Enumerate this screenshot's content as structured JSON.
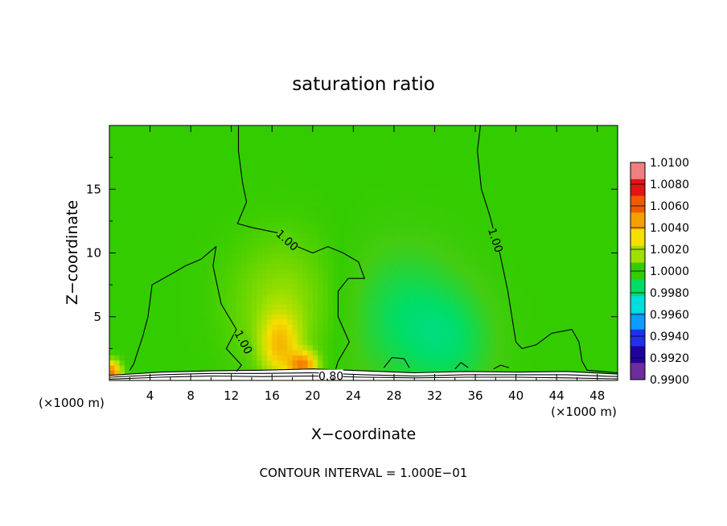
{
  "chart_data": {
    "type": "heatmap",
    "title": "saturation ratio",
    "xlabel": "X−coordinate",
    "ylabel": "Z−coordinate",
    "x_unit_left": "(×1000 m)",
    "x_unit_right": "(×1000 m)",
    "footer": "CONTOUR INTERVAL = 1.000E−01",
    "xlim": [
      0,
      50
    ],
    "ylim": [
      0,
      20
    ],
    "x_ticks": [
      4,
      8,
      12,
      16,
      20,
      24,
      28,
      32,
      36,
      40,
      44,
      48
    ],
    "y_ticks": [
      5,
      10,
      15
    ],
    "field_background": 1.0,
    "field_features": [
      {
        "x": 16.8,
        "z": 2.8,
        "sx": 1.2,
        "sz": 1.6,
        "amp": 0.0028
      },
      {
        "x": 19.0,
        "z": 1.2,
        "sx": 0.9,
        "sz": 0.7,
        "amp": 0.0045
      },
      {
        "x": 17.0,
        "z": 6.0,
        "sx": 3.5,
        "sz": 3.5,
        "amp": 0.0009
      },
      {
        "x": 29.0,
        "z": 5.0,
        "sx": 4.0,
        "sz": 4.0,
        "amp": -0.0009
      },
      {
        "x": 34.0,
        "z": 3.0,
        "sx": 3.0,
        "sz": 3.0,
        "amp": -0.0007
      },
      {
        "x": 0.2,
        "z": 0.6,
        "sx": 0.6,
        "sz": 0.6,
        "amp": 0.005
      }
    ],
    "colorbar": {
      "labels": [
        "1.0100",
        "1.0080",
        "1.0060",
        "1.0040",
        "1.0020",
        "1.0000",
        "0.9980",
        "0.9960",
        "0.9940",
        "0.9920",
        "0.9900"
      ],
      "colors": [
        "#f08080",
        "#e21414",
        "#f05a00",
        "#f5a000",
        "#f5e000",
        "#a0e000",
        "#33cc00",
        "#00dd66",
        "#00dddd",
        "#0a9eff",
        "#2030ee",
        "#2000a0",
        "#6b2e9c"
      ]
    },
    "contour_label_value": "1.00",
    "contour_label_low": "0.80",
    "contours": [
      {
        "name": "c-left-column",
        "points": [
          [
            12.5,
            0.7
          ],
          [
            13.0,
            1.2
          ],
          [
            11.5,
            2.5
          ],
          [
            12.5,
            4.0
          ],
          [
            11.0,
            6.0
          ],
          [
            10.2,
            9.0
          ],
          [
            10.5,
            10.5
          ],
          [
            9.0,
            9.5
          ],
          [
            7.5,
            9.0
          ],
          [
            6.0,
            8.3
          ],
          [
            4.2,
            7.5
          ],
          [
            3.8,
            5.0
          ],
          [
            3.3,
            3.5
          ],
          [
            2.4,
            1.3
          ],
          [
            2.0,
            0.8
          ]
        ]
      },
      {
        "name": "c-upper-left",
        "points": [
          [
            12.7,
            20.0
          ],
          [
            12.7,
            18.0
          ],
          [
            13.1,
            15.5
          ],
          [
            13.5,
            14.0
          ],
          [
            12.6,
            12.3
          ],
          [
            14.0,
            12.0
          ],
          [
            17.0,
            11.5
          ],
          [
            18.5,
            10.5
          ],
          [
            20.0,
            10.0
          ],
          [
            21.5,
            10.5
          ],
          [
            23.0,
            10.0
          ],
          [
            24.5,
            9.3
          ],
          [
            25.1,
            8.0
          ],
          [
            23.5,
            8.0
          ],
          [
            22.5,
            7.0
          ],
          [
            22.5,
            5.0
          ],
          [
            23.6,
            3.0
          ],
          [
            22.5,
            1.5
          ],
          [
            22.2,
            0.7
          ]
        ]
      },
      {
        "name": "c-right",
        "points": [
          [
            36.5,
            20.0
          ],
          [
            36.2,
            18.0
          ],
          [
            36.6,
            15.0
          ],
          [
            37.4,
            13.0
          ],
          [
            38.4,
            10.0
          ],
          [
            39.2,
            7.0
          ],
          [
            39.7,
            4.5
          ],
          [
            40.0,
            3.0
          ],
          [
            40.6,
            2.5
          ],
          [
            42.0,
            2.8
          ],
          [
            43.5,
            3.7
          ],
          [
            45.5,
            4.0
          ],
          [
            46.2,
            3.0
          ],
          [
            46.5,
            1.5
          ],
          [
            47.0,
            0.8
          ],
          [
            48.5,
            0.7
          ],
          [
            50.0,
            0.6
          ]
        ]
      },
      {
        "name": "c-hill-26",
        "points": [
          [
            27.0,
            1.0
          ],
          [
            27.8,
            1.8
          ],
          [
            29.0,
            1.7
          ],
          [
            29.5,
            1.0
          ]
        ]
      },
      {
        "name": "c-hill-35",
        "points": [
          [
            34.0,
            0.9
          ],
          [
            34.6,
            1.4
          ],
          [
            35.3,
            1.0
          ]
        ]
      },
      {
        "name": "c-hill-38",
        "points": [
          [
            37.8,
            0.9
          ],
          [
            38.5,
            1.2
          ],
          [
            39.3,
            1.0
          ]
        ]
      },
      {
        "name": "c-surface-1",
        "points": [
          [
            0.0,
            0.4
          ],
          [
            5.0,
            0.65
          ],
          [
            10.0,
            0.75
          ],
          [
            15.0,
            0.8
          ],
          [
            20.0,
            0.9
          ],
          [
            25.0,
            0.75
          ],
          [
            30.0,
            0.6
          ],
          [
            35.0,
            0.7
          ],
          [
            40.0,
            0.65
          ],
          [
            45.0,
            0.7
          ],
          [
            50.0,
            0.5
          ]
        ]
      },
      {
        "name": "c-surface-2",
        "points": [
          [
            0.0,
            0.25
          ],
          [
            5.0,
            0.45
          ],
          [
            10.0,
            0.55
          ],
          [
            15.0,
            0.55
          ],
          [
            20.0,
            0.6
          ],
          [
            25.0,
            0.45
          ],
          [
            30.0,
            0.35
          ],
          [
            35.0,
            0.45
          ],
          [
            40.0,
            0.45
          ],
          [
            45.0,
            0.45
          ],
          [
            50.0,
            0.3
          ]
        ]
      },
      {
        "name": "c-surface-3",
        "points": [
          [
            0.0,
            0.1
          ],
          [
            5.0,
            0.25
          ],
          [
            10.0,
            0.35
          ],
          [
            15.0,
            0.3
          ],
          [
            20.0,
            0.35
          ],
          [
            25.0,
            0.25
          ],
          [
            30.0,
            0.2
          ],
          [
            35.0,
            0.25
          ],
          [
            40.0,
            0.25
          ],
          [
            45.0,
            0.2
          ],
          [
            50.0,
            0.12
          ]
        ]
      }
    ],
    "contour_labels": [
      {
        "x": 17.5,
        "z": 11.0,
        "angle": 42
      },
      {
        "x": 13.2,
        "z": 3.0,
        "angle": 62
      },
      {
        "x": 38.0,
        "z": 11.0,
        "angle": 72
      },
      {
        "x": 21.8,
        "z": 0.35,
        "angle": 0,
        "low": true
      }
    ]
  }
}
